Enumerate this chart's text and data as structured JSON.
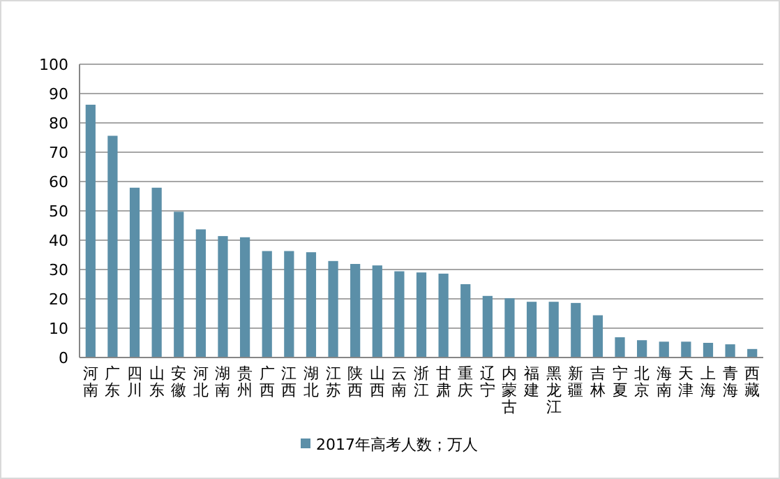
{
  "chart_data": {
    "type": "bar",
    "categories": [
      "河南",
      "广东",
      "四川",
      "山东",
      "安徽",
      "河北",
      "湖南",
      "贵州",
      "广西",
      "江西",
      "湖北",
      "江苏",
      "陕西",
      "山西",
      "云南",
      "浙江",
      "甘肃",
      "重庆",
      "辽宁",
      "内蒙古",
      "福建",
      "黑龙江",
      "新疆",
      "吉林",
      "宁夏",
      "北京",
      "海南",
      "天津",
      "上海",
      "青海",
      "西藏"
    ],
    "series": [
      {
        "name": "2017年高考人数；万人",
        "color": "#5b8fa8",
        "values": [
          86.2,
          75.6,
          57.9,
          57.9,
          49.7,
          43.7,
          41.4,
          41.0,
          36.3,
          36.3,
          35.9,
          32.9,
          31.9,
          31.4,
          29.4,
          29.0,
          28.6,
          25.0,
          21.0,
          20.2,
          19.0,
          19.0,
          18.6,
          14.4,
          6.9,
          5.9,
          5.4,
          5.4,
          5.0,
          4.5,
          2.9
        ]
      }
    ],
    "ylim": [
      0,
      100
    ],
    "yticks": [
      0,
      10,
      20,
      30,
      40,
      50,
      60,
      70,
      80,
      90,
      100
    ],
    "grid": "y",
    "legend": "bottom"
  }
}
